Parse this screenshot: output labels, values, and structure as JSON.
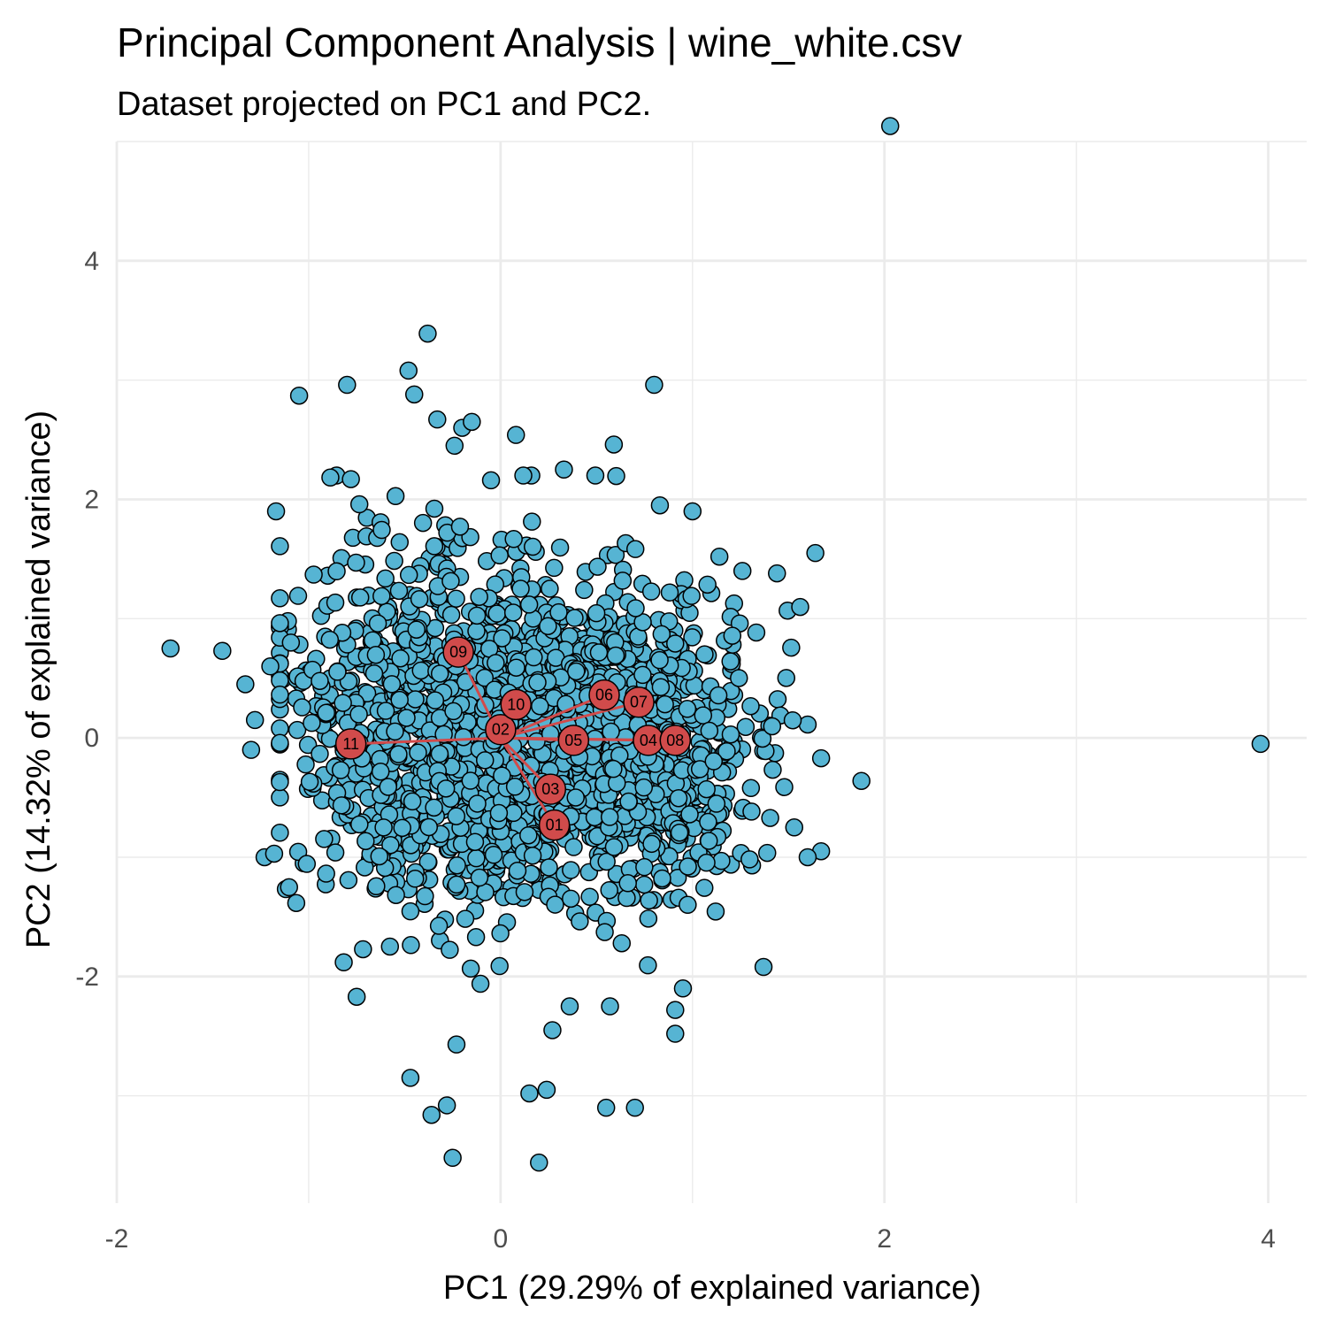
{
  "chart_data": {
    "type": "scatter",
    "title": "Principal Component Analysis | wine_white.csv",
    "subtitle": "Dataset projected on PC1 and PC2.",
    "xlabel": "PC1 (29.29% of explained variance)",
    "ylabel": "PC2 (14.32% of explained variance)",
    "xlim": [
      -2.0,
      4.2
    ],
    "ylim": [
      -3.9,
      5.0
    ],
    "xticks": [
      -2,
      0,
      2,
      4
    ],
    "xtick_labels": [
      "-2",
      "0",
      "2",
      "4"
    ],
    "yticks": [
      -2,
      0,
      2,
      4
    ],
    "ytick_labels": [
      "-2",
      "0",
      "2",
      "4"
    ],
    "grid": true,
    "point_color": "#56b4d3",
    "loading_color": "#d14b4b",
    "outliers": [
      {
        "x": 2.03,
        "y": 5.13
      },
      {
        "x": 3.96,
        "y": -0.05
      },
      {
        "x": -1.72,
        "y": 0.75
      },
      {
        "x": -1.45,
        "y": 0.73
      },
      {
        "x": -1.33,
        "y": 0.45
      },
      {
        "x": -1.28,
        "y": 0.15
      },
      {
        "x": -1.3,
        "y": -0.1
      },
      {
        "x": -1.2,
        "y": 0.6
      },
      {
        "x": -1.17,
        "y": 1.9
      },
      {
        "x": -1.05,
        "y": 2.87
      },
      {
        "x": -0.8,
        "y": 2.96
      },
      {
        "x": -0.38,
        "y": 3.39
      },
      {
        "x": -0.48,
        "y": 3.08
      },
      {
        "x": -0.45,
        "y": 2.88
      },
      {
        "x": -0.33,
        "y": 2.67
      },
      {
        "x": -0.24,
        "y": 2.45
      },
      {
        "x": -0.2,
        "y": 2.6
      },
      {
        "x": -0.15,
        "y": 2.65
      },
      {
        "x": 0.08,
        "y": 2.54
      },
      {
        "x": 0.59,
        "y": 2.46
      },
      {
        "x": 0.8,
        "y": 2.96
      },
      {
        "x": 0.83,
        "y": 1.95
      },
      {
        "x": 1.0,
        "y": 1.9
      },
      {
        "x": 1.64,
        "y": 1.55
      },
      {
        "x": 1.44,
        "y": 1.38
      },
      {
        "x": 1.26,
        "y": 1.4
      },
      {
        "x": 1.14,
        "y": 1.52
      },
      {
        "x": 1.88,
        "y": -0.36
      },
      {
        "x": 1.67,
        "y": -0.17
      },
      {
        "x": 1.67,
        "y": -0.95
      },
      {
        "x": 1.6,
        "y": -1.0
      },
      {
        "x": 1.53,
        "y": -0.75
      },
      {
        "x": 1.37,
        "y": -1.92
      },
      {
        "x": 0.95,
        "y": -2.1
      },
      {
        "x": 0.91,
        "y": -2.28
      },
      {
        "x": 0.91,
        "y": -2.48
      },
      {
        "x": 0.7,
        "y": -3.1
      },
      {
        "x": 0.55,
        "y": -3.1
      },
      {
        "x": 0.57,
        "y": -2.25
      },
      {
        "x": 0.24,
        "y": -2.95
      },
      {
        "x": 0.15,
        "y": -2.98
      },
      {
        "x": 0.2,
        "y": -3.56
      },
      {
        "x": -0.25,
        "y": -3.52
      },
      {
        "x": -0.28,
        "y": -3.08
      },
      {
        "x": -0.36,
        "y": -3.16
      },
      {
        "x": -0.47,
        "y": -2.85
      },
      {
        "x": -0.75,
        "y": -2.17
      },
      {
        "x": -0.23,
        "y": -2.57
      },
      {
        "x": -1.23,
        "y": -1.0
      },
      {
        "x": -1.18,
        "y": -0.97
      },
      {
        "x": 0.36,
        "y": -2.25
      },
      {
        "x": 0.27,
        "y": -2.45
      },
      {
        "x": -0.78,
        "y": 2.17
      },
      {
        "x": -0.05,
        "y": 2.16
      },
      {
        "x": 0.33,
        "y": 2.25
      }
    ],
    "loadings": [
      {
        "label": "01",
        "x": 0.28,
        "y": -0.73
      },
      {
        "label": "02",
        "x": 0.0,
        "y": 0.07
      },
      {
        "label": "03",
        "x": 0.26,
        "y": -0.43
      },
      {
        "label": "04",
        "x": 0.77,
        "y": -0.02
      },
      {
        "label": "05",
        "x": 0.38,
        "y": -0.02
      },
      {
        "label": "06",
        "x": 0.54,
        "y": 0.36
      },
      {
        "label": "07",
        "x": 0.72,
        "y": 0.3
      },
      {
        "label": "08",
        "x": 0.91,
        "y": -0.02
      },
      {
        "label": "09",
        "x": -0.22,
        "y": 0.72
      },
      {
        "label": "10",
        "x": 0.08,
        "y": 0.28
      },
      {
        "label": "11",
        "x": -0.78,
        "y": -0.05
      }
    ]
  }
}
